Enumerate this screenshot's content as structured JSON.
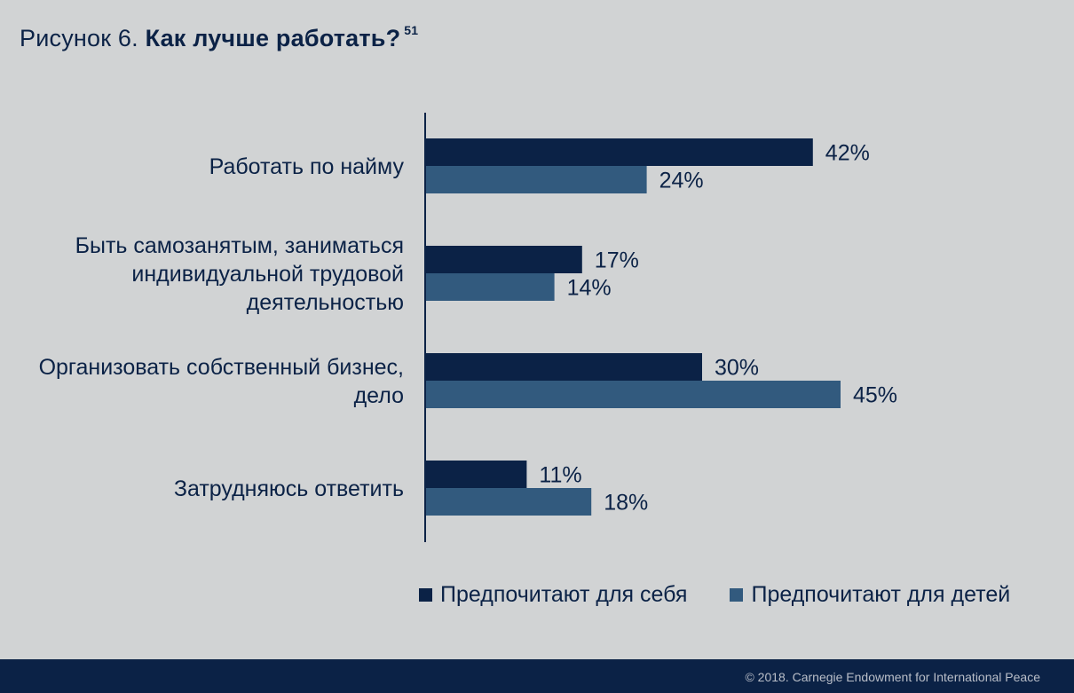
{
  "title": {
    "prefix": "Рисунок 6.",
    "main": "Как лучше работать?",
    "footnote": "51"
  },
  "chart_data": {
    "type": "bar",
    "orientation": "horizontal",
    "categories": [
      [
        "Работать по найму"
      ],
      [
        "Быть самозанятым, заниматься",
        "индивидуальной трудовой",
        "деятельностью"
      ],
      [
        "Организовать собственный бизнес,",
        "дело"
      ],
      [
        "Затрудняюсь ответить"
      ]
    ],
    "series": [
      {
        "name": "Предпочитают для себя",
        "values": [
          42,
          17,
          30,
          11
        ],
        "color": "#0b2246"
      },
      {
        "name": "Предпочитают для детей",
        "values": [
          24,
          14,
          45,
          18
        ],
        "color": "#325a7e"
      }
    ],
    "value_suffix": "%",
    "xlim": [
      0,
      60
    ],
    "grid": false,
    "legend_position": "bottom-right"
  },
  "footer": {
    "credit": "© 2018. Carnegie Endowment for International Peace"
  }
}
